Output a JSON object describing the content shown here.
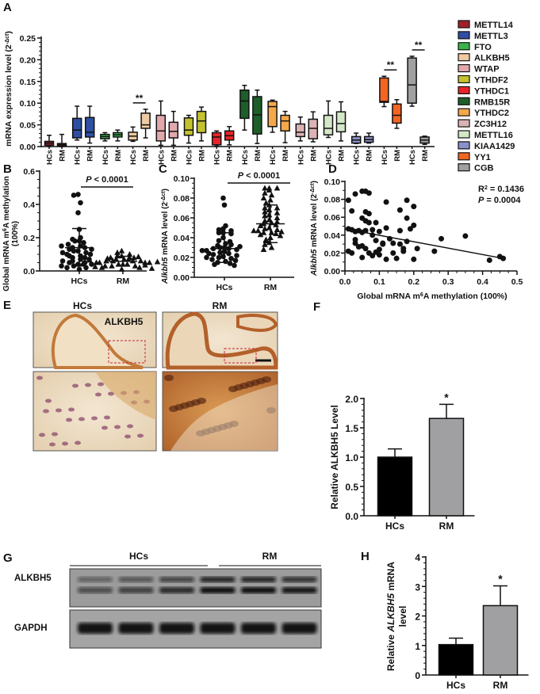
{
  "panel_letters": {
    "a": "A",
    "b": "B",
    "c": "C",
    "d": "D",
    "e": "E",
    "f": "F",
    "g": "G",
    "h": "H"
  },
  "colors": {
    "axis": "#111111",
    "bar_hcs": "#000000",
    "bar_rm": "#a0a0a2",
    "sig_box": "#c0283a"
  },
  "chart_data": [
    {
      "id": "A",
      "type": "box",
      "ylabel": "mRNA expression level (2",
      "ylabel_sup": "-Δct",
      "ylabel_end": ")",
      "ylim": [
        0,
        0.25
      ],
      "yticks": [
        "0.00",
        "0.05",
        "0.10",
        "0.15",
        "0.20",
        "0.25"
      ],
      "group_labels": [
        "HCs",
        "RM"
      ],
      "legend_position": "right",
      "significance": "**",
      "genes": [
        {
          "name": "METTL14",
          "color": "#a31f2a",
          "sig": false,
          "hcs": [
            0,
            0.003,
            0.008,
            0.012,
            0.026
          ],
          "rm": [
            0,
            0.001,
            0.004,
            0.007,
            0.028
          ]
        },
        {
          "name": "METTL3",
          "color": "#2e4fa3",
          "sig": false,
          "hcs": [
            0.015,
            0.02,
            0.038,
            0.065,
            0.093
          ],
          "rm": [
            0.008,
            0.022,
            0.033,
            0.067,
            0.093
          ]
        },
        {
          "name": "FTO",
          "color": "#3cb34a",
          "sig": false,
          "hcs": [
            0.013,
            0.018,
            0.023,
            0.028,
            0.032
          ],
          "rm": [
            0.013,
            0.022,
            0.027,
            0.032,
            0.038
          ]
        },
        {
          "name": "ALKBH5",
          "color": "#efc9a0",
          "sig": true,
          "hcs": [
            0.012,
            0.015,
            0.024,
            0.033,
            0.045
          ],
          "rm": [
            0.02,
            0.042,
            0.05,
            0.077,
            0.086
          ]
        },
        {
          "name": "WTAP",
          "color": "#e2a9ad",
          "sig": false,
          "hcs": [
            0.003,
            0.013,
            0.036,
            0.072,
            0.105
          ],
          "rm": [
            0.003,
            0.02,
            0.035,
            0.056,
            0.081
          ]
        },
        {
          "name": "YTHDF2",
          "color": "#c4c22e",
          "sig": false,
          "hcs": [
            0.008,
            0.026,
            0.038,
            0.066,
            0.072
          ],
          "rm": [
            0.013,
            0.032,
            0.059,
            0.081,
            0.091
          ]
        },
        {
          "name": "YTHDC1",
          "color": "#e8232a",
          "sig": false,
          "hcs": [
            0.001,
            0.004,
            0.022,
            0.032,
            0.036
          ],
          "rm": [
            0.004,
            0.015,
            0.025,
            0.036,
            0.046
          ]
        },
        {
          "name": "RMB15R",
          "color": "#1d5e2a",
          "sig": false,
          "hcs": [
            0.038,
            0.065,
            0.105,
            0.13,
            0.141
          ],
          "rm": [
            0.007,
            0.029,
            0.073,
            0.115,
            0.13
          ]
        },
        {
          "name": "YTHDC2",
          "color": "#f5a84a",
          "sig": false,
          "hcs": [
            0.033,
            0.046,
            0.092,
            0.104,
            0.107
          ],
          "rm": [
            0.009,
            0.036,
            0.059,
            0.072,
            0.081
          ]
        },
        {
          "name": "ZC3H12",
          "color": "#dcb3b4",
          "sig": false,
          "hcs": [
            0.013,
            0.023,
            0.033,
            0.052,
            0.068
          ],
          "rm": [
            0.011,
            0.018,
            0.042,
            0.063,
            0.08
          ]
        },
        {
          "name": "METTL16",
          "color": "#d4e8c8",
          "sig": false,
          "hcs": [
            0.021,
            0.027,
            0.042,
            0.072,
            0.105
          ],
          "rm": [
            0.013,
            0.034,
            0.053,
            0.08,
            0.103
          ]
        },
        {
          "name": "KIAA1429",
          "color": "#8a90c8",
          "sig": false,
          "hcs": [
            0.007,
            0.008,
            0.015,
            0.023,
            0.031
          ],
          "rm": [
            0.008,
            0.01,
            0.016,
            0.023,
            0.031
          ]
        },
        {
          "name": "YY1",
          "color": "#f26522",
          "sig": true,
          "hcs": [
            0.092,
            0.102,
            0.104,
            0.158,
            0.162
          ],
          "rm": [
            0.042,
            0.054,
            0.072,
            0.098,
            0.108
          ]
        },
        {
          "name": "CGB",
          "color": "#a0a0a0",
          "sig": true,
          "hcs": [
            0.093,
            0.1,
            0.142,
            0.204,
            0.208
          ],
          "rm": [
            0.005,
            0.008,
            0.015,
            0.022,
            0.024
          ]
        }
      ]
    },
    {
      "id": "B",
      "type": "scatter",
      "ylabel_1": "Global mRNA m",
      "ylabel_sup": "6",
      "ylabel_1_end": "A methylation",
      "ylabel_2": "(100%)",
      "ylim": [
        0,
        0.6
      ],
      "yticks": [
        "0.0",
        "0.2",
        "0.4",
        "0.6"
      ],
      "categories": [
        "HCs",
        "RM"
      ],
      "p_text": "P",
      "p_rest": " < 0.0001",
      "groups": [
        {
          "name": "HCs",
          "marker": "circle",
          "mean": 0.14,
          "sd_low": 0.03,
          "sd_high": 0.255,
          "values": [
            0.46,
            0.455,
            0.41,
            0.35,
            0.25,
            0.2,
            0.19,
            0.18,
            0.18,
            0.17,
            0.16,
            0.15,
            0.14,
            0.14,
            0.13,
            0.12,
            0.12,
            0.11,
            0.1,
            0.1,
            0.09,
            0.08,
            0.08,
            0.07,
            0.06,
            0.05,
            0.05,
            0.04,
            0.03,
            0.02,
            0.02,
            0.01,
            0.13,
            0.15,
            0.11,
            0.09,
            0.07,
            0.06,
            0.04,
            0.03
          ]
        },
        {
          "name": "RM",
          "marker": "triangle",
          "mean": 0.058,
          "sd_low": 0.03,
          "sd_high": 0.088,
          "values": [
            0.12,
            0.11,
            0.1,
            0.09,
            0.09,
            0.08,
            0.08,
            0.08,
            0.07,
            0.07,
            0.07,
            0.06,
            0.06,
            0.06,
            0.06,
            0.05,
            0.05,
            0.05,
            0.05,
            0.04,
            0.04,
            0.04,
            0.03,
            0.03,
            0.03,
            0.02,
            0.02,
            0.01,
            0.065,
            0.055,
            0.045,
            0.035,
            0.075,
            0.085,
            0.025,
            0.015
          ]
        }
      ]
    },
    {
      "id": "C",
      "type": "scatter",
      "ylabel_1": "Alkbh5",
      "ylabel_2": " mRNA level (2",
      "ylabel_sup": "-Δct",
      "ylabel_end": ")",
      "ylim": [
        0,
        0.1
      ],
      "yticks": [
        "0.00",
        "0.02",
        "0.04",
        "0.06",
        "0.08",
        "0.10"
      ],
      "categories": [
        "HCs",
        "RM"
      ],
      "p_text": "P",
      "p_rest": " < 0.0001",
      "groups": [
        {
          "name": "HCs",
          "marker": "circle",
          "mean": 0.029,
          "sd_low": 0.015,
          "sd_high": 0.045,
          "values": [
            0.08,
            0.073,
            0.052,
            0.049,
            0.048,
            0.047,
            0.045,
            0.045,
            0.044,
            0.04,
            0.037,
            0.034,
            0.032,
            0.03,
            0.03,
            0.029,
            0.029,
            0.028,
            0.027,
            0.026,
            0.025,
            0.024,
            0.023,
            0.022,
            0.021,
            0.02,
            0.019,
            0.018,
            0.017,
            0.016,
            0.015,
            0.014,
            0.013,
            0.012,
            0.036,
            0.033,
            0.031,
            0.027,
            0.024,
            0.02
          ]
        },
        {
          "name": "RM",
          "marker": "triangle",
          "mean": 0.054,
          "sd_low": 0.035,
          "sd_high": 0.073,
          "values": [
            0.09,
            0.09,
            0.09,
            0.088,
            0.085,
            0.083,
            0.08,
            0.078,
            0.075,
            0.073,
            0.07,
            0.07,
            0.068,
            0.066,
            0.065,
            0.063,
            0.062,
            0.06,
            0.058,
            0.057,
            0.055,
            0.054,
            0.053,
            0.052,
            0.05,
            0.049,
            0.048,
            0.047,
            0.046,
            0.045,
            0.045,
            0.044,
            0.043,
            0.042,
            0.04,
            0.038,
            0.035,
            0.033,
            0.03,
            0.028,
            0.047,
            0.056
          ]
        }
      ]
    },
    {
      "id": "D",
      "type": "scatter",
      "xlabel_1": "Global mRNA m",
      "xlabel_sup": "6",
      "xlabel_end": "A methylation (100%)",
      "ylabel_1": "Alkbh5",
      "ylabel_2": " mRNA level (2",
      "ylabel_sup": "-Δct",
      "ylabel_end": ")",
      "xlim": [
        0,
        0.5
      ],
      "ylim": [
        0,
        0.1
      ],
      "xticks": [
        "0.0",
        "0.1",
        "0.2",
        "0.3",
        "0.4",
        "0.5"
      ],
      "yticks": [
        "0.00",
        "0.02",
        "0.04",
        "0.06",
        "0.08",
        "0.10"
      ],
      "r2_label": "R",
      "r2_sup": "2",
      "r2_value": " = 0.1436",
      "p_label": "P",
      "p_value": "  = 0.0004",
      "fit_line": {
        "x": [
          0,
          0.46
        ],
        "y": [
          0.047,
          0.014
        ]
      },
      "points": [
        [
          0.01,
          0.079
        ],
        [
          0.03,
          0.086
        ],
        [
          0.05,
          0.089
        ],
        [
          0.06,
          0.089
        ],
        [
          0.07,
          0.087
        ],
        [
          0.12,
          0.077
        ],
        [
          0.18,
          0.079
        ],
        [
          0.16,
          0.068
        ],
        [
          0.2,
          0.072
        ],
        [
          0.02,
          0.067
        ],
        [
          0.06,
          0.066
        ],
        [
          0.07,
          0.064
        ],
        [
          0.05,
          0.059
        ],
        [
          0.06,
          0.056
        ],
        [
          0.07,
          0.054
        ],
        [
          0.09,
          0.054
        ],
        [
          0.18,
          0.059
        ],
        [
          0.01,
          0.047
        ],
        [
          0.02,
          0.046
        ],
        [
          0.03,
          0.044
        ],
        [
          0.04,
          0.045
        ],
        [
          0.05,
          0.043
        ],
        [
          0.06,
          0.045
        ],
        [
          0.08,
          0.046
        ],
        [
          0.1,
          0.044
        ],
        [
          0.12,
          0.048
        ],
        [
          0.16,
          0.045
        ],
        [
          0.19,
          0.047
        ],
        [
          0.2,
          0.051
        ],
        [
          0.09,
          0.034
        ],
        [
          0.11,
          0.03
        ],
        [
          0.14,
          0.031
        ],
        [
          0.18,
          0.033
        ],
        [
          0.21,
          0.025
        ],
        [
          0.26,
          0.022
        ],
        [
          0.28,
          0.036
        ],
        [
          0.35,
          0.039
        ],
        [
          0.03,
          0.031
        ],
        [
          0.05,
          0.028
        ],
        [
          0.06,
          0.025
        ],
        [
          0.07,
          0.02
        ],
        [
          0.08,
          0.017
        ],
        [
          0.09,
          0.021
        ],
        [
          0.1,
          0.024
        ],
        [
          0.1,
          0.018
        ],
        [
          0.12,
          0.013
        ],
        [
          0.14,
          0.02
        ],
        [
          0.15,
          0.014
        ],
        [
          0.17,
          0.025
        ],
        [
          0.2,
          0.013
        ],
        [
          0.01,
          0.022
        ],
        [
          0.02,
          0.02
        ],
        [
          0.04,
          0.027
        ],
        [
          0.05,
          0.015
        ],
        [
          0.11,
          0.031
        ],
        [
          0.17,
          0.022
        ],
        [
          0.13,
          0.036
        ],
        [
          0.16,
          0.03
        ],
        [
          0.42,
          0.012
        ],
        [
          0.45,
          0.016
        ],
        [
          0.46,
          0.014
        ],
        [
          0.03,
          0.035
        ],
        [
          0.08,
          0.04
        ]
      ]
    },
    {
      "id": "F",
      "type": "bar",
      "ylabel": "Relative ALKBH5 Level",
      "ylim": [
        0,
        2.0
      ],
      "yticks": [
        "0.0",
        "0.5",
        "1.0",
        "1.5",
        "2.0"
      ],
      "categories": [
        "HCs",
        "RM"
      ],
      "values": [
        1.0,
        1.66
      ],
      "error_high": [
        1.14,
        1.9
      ],
      "annotations": [
        "",
        "*"
      ]
    },
    {
      "id": "H",
      "type": "bar",
      "ylabel_1": "Relative ",
      "ylabel_italic": "ALKBH5",
      "ylabel_2": " mRNA",
      "ylabel_3": "level",
      "ylim": [
        0,
        4
      ],
      "yticks": [
        "0",
        "1",
        "2",
        "3",
        "4"
      ],
      "categories": [
        "HCs",
        "RM"
      ],
      "values": [
        1.03,
        2.35
      ],
      "error_high": [
        1.25,
        3.02
      ],
      "annotations": [
        "",
        "*"
      ]
    }
  ],
  "panel_e": {
    "group_hcs": "HCs",
    "group_rm": "RM",
    "stain": "ALKBH5"
  },
  "panel_g": {
    "group_hcs": "HCs",
    "group_rm": "RM",
    "rows": [
      "ALKBH5",
      "GAPDH"
    ],
    "alkbh5_intensity": [
      0.45,
      0.55,
      0.7,
      0.95,
      0.95,
      0.85
    ],
    "gapdh_intensity": [
      0.95,
      0.95,
      0.95,
      0.95,
      0.95,
      0.95
    ]
  }
}
